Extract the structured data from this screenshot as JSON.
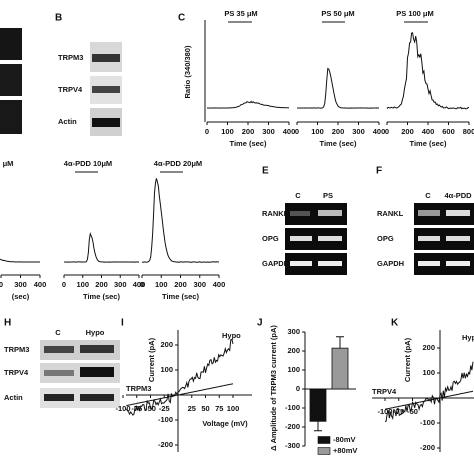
{
  "panels": {
    "B": {
      "label": "B",
      "rows": [
        "TRPM3",
        "TRPV4",
        "Actin"
      ]
    },
    "C": {
      "label": "C",
      "y_label": "Ratio (340/380)",
      "x_label": "Time (sec)",
      "plots": [
        {
          "title": "PS 35 μM",
          "xticks": [
            0,
            100,
            200,
            300,
            400
          ]
        },
        {
          "title": "PS 50 μM",
          "xticks": [
            0,
            100,
            200,
            300,
            400
          ]
        },
        {
          "title": "PS 100 μM",
          "xticks": [
            0,
            200,
            400,
            600,
            800
          ]
        }
      ]
    },
    "D": {
      "plots": [
        {
          "title": "μM",
          "x_label": "(sec)",
          "xticks": [
            {
              "value": 200,
              "label": "0"
            },
            300,
            400
          ]
        },
        {
          "title": "4α-PDD 10μM",
          "x_label": "Time (sec)",
          "xticks": [
            0,
            100,
            200,
            300,
            400
          ]
        },
        {
          "title": "4α-PDD 20μM",
          "x_label": "Time (sec)",
          "xticks": [
            0,
            100,
            200,
            300,
            400
          ]
        }
      ]
    },
    "E": {
      "label": "E",
      "columns": [
        "C",
        "PS"
      ],
      "rows": [
        "RANKL",
        "OPG",
        "GAPDH"
      ]
    },
    "F": {
      "label": "F",
      "columns": [
        "C",
        "4α-PDD"
      ],
      "rows": [
        "RANKL",
        "OPG",
        "GAPDH"
      ]
    },
    "H": {
      "label": "H",
      "columns": [
        "C",
        "Hypo"
      ],
      "rows": [
        "TRPM3",
        "TRPV4",
        "Actin"
      ]
    },
    "I": {
      "label": "I",
      "y_label": "Current (pA)",
      "x_label": "Voltage (mV)",
      "trace_label": "TRPM3",
      "condition": "Hypo",
      "xticks": [
        -100,
        -75,
        -50,
        -25,
        25,
        50,
        75,
        100
      ],
      "yticks": [
        200,
        100,
        -100,
        -200
      ]
    },
    "J": {
      "label": "J",
      "y_label": "Δ Amplitude of TRPM3 current (pA)",
      "ylim": [
        -300,
        300
      ],
      "yticks": [
        -300,
        -200,
        -100,
        0,
        100,
        200,
        300
      ],
      "series": [
        {
          "name": "-80mV",
          "color": "#111111",
          "value": -170,
          "error": 50
        },
        {
          "name": "+80mV",
          "color": "#9a9a9a",
          "value": 215,
          "error": 60
        }
      ]
    },
    "K": {
      "label": "K",
      "y_label": "Current (pA)",
      "trace_label": "TRPV4",
      "condition": "Hyp",
      "xticks": [
        -100,
        -75,
        -50
      ],
      "yticks": [
        200,
        100,
        -100,
        -200
      ]
    }
  }
}
